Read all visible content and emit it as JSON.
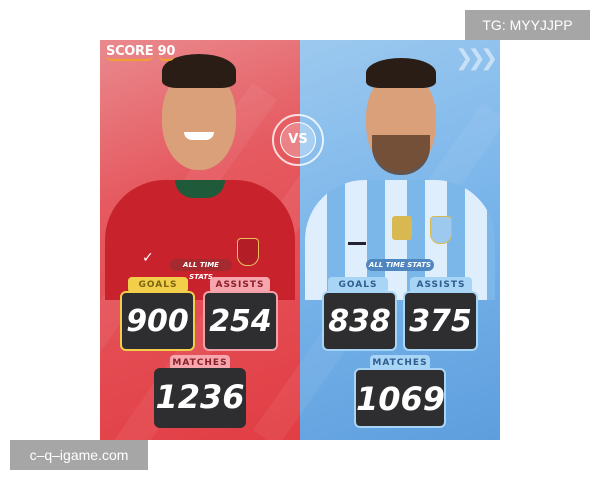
{
  "branding": {
    "logo_text": "SCORE",
    "logo_number": "90",
    "vs_label": "VS"
  },
  "watermarks": {
    "top_right": "TG: MYYJJPP",
    "bottom_left": "c–q–igame.com"
  },
  "colors": {
    "left_panel": "#e4454b",
    "right_panel": "#78b4ea",
    "stat_box": "#2e2e30",
    "goals_tag_left": "#f2cf4a"
  },
  "players": [
    {
      "section_label": "ALL TIME STATS",
      "goals_label": "GOALS",
      "goals": "900",
      "assists_label": "ASSISTS",
      "assists": "254",
      "matches_label": "MATCHES",
      "matches": "1236"
    },
    {
      "section_label": "ALL TIME STATS",
      "goals_label": "GOALS",
      "goals": "838",
      "assists_label": "ASSISTS",
      "assists": "375",
      "matches_label": "MATCHES",
      "matches": "1069"
    }
  ]
}
